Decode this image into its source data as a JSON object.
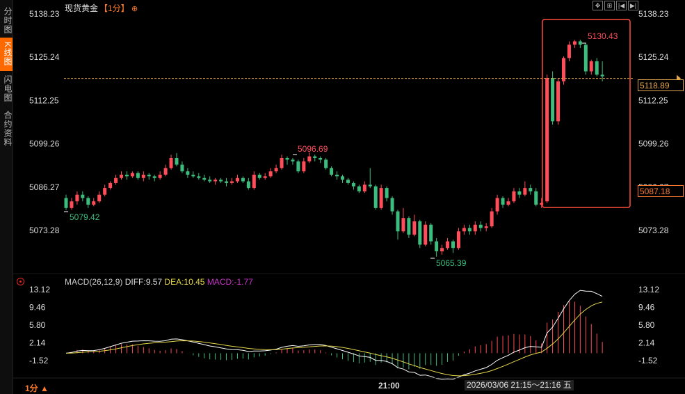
{
  "sidebar": {
    "tabs": [
      {
        "label": "分时图",
        "active": false
      },
      {
        "label": "K线图",
        "active": true
      },
      {
        "label": "闪电图",
        "active": false
      },
      {
        "label": "合约资料",
        "active": false
      }
    ]
  },
  "header": {
    "title": "现货黄金",
    "period": "【1分】",
    "zoom_icon": "zoom-in-icon"
  },
  "toolbar": {
    "buttons": [
      "expand-icon",
      "fit-icon",
      "first-page-icon",
      "last-page-icon"
    ]
  },
  "price_axis": {
    "left_labels": [
      "5138.23",
      "5125.24",
      "5112.25",
      "5099.26",
      "5086.27",
      "5073.28"
    ],
    "right_labels": [
      "5138.23",
      "5125.24",
      "5112.25",
      "5099.26",
      "5086.27",
      "5073.28"
    ],
    "current_price": "5118.89",
    "crosshair_price": "5087.18"
  },
  "annotations": {
    "high_left": "5096.69",
    "high_right": "5130.43",
    "low_left": "5079.42",
    "low_mid": "5065.39"
  },
  "macd": {
    "title": "MACD(26,12,9)",
    "diff": "DIFF:9.57",
    "dea": "DEA:10.45",
    "macd": "MACD:-1.77",
    "axis_labels": [
      "13.12",
      "9.46",
      "5.80",
      "2.14",
      "-1.52"
    ]
  },
  "footer": {
    "period": "1分 ▲",
    "time_tick": "21:00",
    "crosshair_time": "2026/03/06 21:15～21:16 五"
  },
  "colors": {
    "up": "#ff4d5a",
    "down": "#3dbd7d",
    "diff": "#ffffff",
    "dea": "#e8d94a",
    "macd_label": "#cc33cc",
    "accent": "#ff6a00",
    "price_line": "#e6a64c"
  },
  "chart_data": {
    "type": "candlestick",
    "ylim": [
      5064,
      5140
    ],
    "candles": [
      [
        5083,
        5080,
        5084,
        5079.4
      ],
      [
        5080,
        5082,
        5083,
        5079.5
      ],
      [
        5082,
        5084,
        5085,
        5081
      ],
      [
        5084,
        5083,
        5085,
        5082
      ],
      [
        5083,
        5081,
        5083.5,
        5080
      ],
      [
        5081,
        5082,
        5083,
        5080.5
      ],
      [
        5082,
        5084,
        5085,
        5081.5
      ],
      [
        5084,
        5086,
        5087,
        5083.5
      ],
      [
        5086,
        5087.5,
        5088,
        5085.5
      ],
      [
        5087.5,
        5089,
        5090,
        5087
      ],
      [
        5089,
        5090,
        5091,
        5088.5
      ],
      [
        5090,
        5089.5,
        5091,
        5088.5
      ],
      [
        5089.5,
        5090.5,
        5091,
        5089
      ],
      [
        5090.5,
        5089,
        5091,
        5088.5
      ],
      [
        5089,
        5090,
        5091,
        5088
      ],
      [
        5090,
        5089.5,
        5090.5,
        5088.5
      ],
      [
        5089.5,
        5089,
        5090,
        5088
      ],
      [
        5089,
        5090,
        5091,
        5088.5
      ],
      [
        5090,
        5092,
        5093,
        5089.5
      ],
      [
        5092,
        5095,
        5096,
        5091.5
      ],
      [
        5095,
        5093,
        5096.5,
        5092.5
      ],
      [
        5093,
        5091,
        5094,
        5090.5
      ],
      [
        5091,
        5090,
        5092,
        5089
      ],
      [
        5090,
        5089.5,
        5091,
        5089
      ],
      [
        5089.5,
        5089,
        5090.5,
        5088.5
      ],
      [
        5089,
        5088.5,
        5090,
        5088
      ],
      [
        5088.5,
        5088,
        5089.5,
        5087.5
      ],
      [
        5088,
        5088.5,
        5089,
        5087
      ],
      [
        5088.5,
        5088,
        5089,
        5087.5
      ],
      [
        5088,
        5087.5,
        5089,
        5086.5
      ],
      [
        5087.5,
        5088,
        5089,
        5087
      ],
      [
        5088,
        5089,
        5090,
        5087.5
      ],
      [
        5089,
        5088,
        5089.5,
        5087.5
      ],
      [
        5088,
        5086,
        5089,
        5085.5
      ],
      [
        5086,
        5090,
        5091,
        5085.5
      ],
      [
        5090,
        5089,
        5090.5,
        5088.5
      ],
      [
        5089,
        5089.5,
        5090.5,
        5088.5
      ],
      [
        5089.5,
        5091,
        5092,
        5089
      ],
      [
        5091,
        5092,
        5093,
        5090.5
      ],
      [
        5092,
        5095,
        5096,
        5091.5
      ],
      [
        5095,
        5094.5,
        5095.5,
        5093
      ],
      [
        5094.5,
        5094,
        5095,
        5093
      ],
      [
        5094,
        5091,
        5094.5,
        5090.5
      ],
      [
        5091,
        5094,
        5095,
        5090.5
      ],
      [
        5094,
        5095.5,
        5096.7,
        5093.5
      ],
      [
        5095.5,
        5095,
        5096,
        5094
      ],
      [
        5095,
        5094.5,
        5095.5,
        5093.5
      ],
      [
        5094.5,
        5092,
        5095,
        5091.5
      ],
      [
        5092,
        5090,
        5092.5,
        5089.5
      ],
      [
        5090,
        5089.5,
        5091,
        5088.5
      ],
      [
        5089.5,
        5088.5,
        5090,
        5087.5
      ],
      [
        5088.5,
        5087.5,
        5089,
        5087
      ],
      [
        5087.5,
        5086.5,
        5088,
        5085.5
      ],
      [
        5086.5,
        5085,
        5087,
        5084.5
      ],
      [
        5085,
        5087,
        5088,
        5084.5
      ],
      [
        5087,
        5086.5,
        5092,
        5086
      ],
      [
        5086.5,
        5080,
        5087,
        5079.5
      ],
      [
        5080,
        5086,
        5087,
        5079.5
      ],
      [
        5086,
        5083,
        5086.5,
        5082
      ],
      [
        5083,
        5079,
        5083.5,
        5078
      ],
      [
        5079,
        5073,
        5079.5,
        5070.5
      ],
      [
        5073,
        5077,
        5080,
        5072.5
      ],
      [
        5077,
        5072,
        5077.5,
        5071
      ],
      [
        5072,
        5076,
        5078,
        5071.5
      ],
      [
        5076,
        5069,
        5076.5,
        5068
      ],
      [
        5069,
        5075,
        5076,
        5068.5
      ],
      [
        5075,
        5070,
        5075.5,
        5069
      ],
      [
        5070,
        5067,
        5071,
        5065.4
      ],
      [
        5067,
        5068,
        5069,
        5066
      ],
      [
        5068,
        5070,
        5071,
        5067.5
      ],
      [
        5070,
        5068,
        5070.5,
        5066.5
      ],
      [
        5068,
        5073,
        5074,
        5067.5
      ],
      [
        5073,
        5074,
        5075,
        5072
      ],
      [
        5074,
        5073,
        5075,
        5072
      ],
      [
        5073,
        5075,
        5076,
        5072
      ],
      [
        5075,
        5074,
        5076,
        5073
      ],
      [
        5074,
        5074.5,
        5075.5,
        5073
      ],
      [
        5074.5,
        5079,
        5080,
        5074
      ],
      [
        5079,
        5083,
        5084,
        5078
      ],
      [
        5083,
        5081,
        5083.5,
        5080
      ],
      [
        5081,
        5082,
        5083,
        5080.5
      ],
      [
        5082,
        5085,
        5086,
        5081.5
      ],
      [
        5085,
        5084,
        5086,
        5083
      ],
      [
        5084,
        5086,
        5088,
        5083.5
      ],
      [
        5086,
        5085,
        5087,
        5084
      ],
      [
        5085,
        5081,
        5086,
        5080.5
      ],
      [
        5081,
        5081.5,
        5083,
        5080
      ],
      [
        5082,
        5119,
        5120,
        5081.5
      ],
      [
        5119,
        5106,
        5121,
        5105
      ],
      [
        5106,
        5118,
        5119,
        5105
      ],
      [
        5118,
        5125,
        5125.5,
        5117
      ],
      [
        5125,
        5129,
        5130,
        5124
      ],
      [
        5129,
        5130,
        5130.43,
        5128
      ],
      [
        5130,
        5129,
        5130.5,
        5128
      ],
      [
        5129,
        5121,
        5129.5,
        5120
      ],
      [
        5121,
        5124,
        5124.5,
        5120
      ],
      [
        5124,
        5120,
        5125,
        5119.5
      ],
      [
        5120,
        5119.5,
        5124,
        5118
      ]
    ]
  }
}
